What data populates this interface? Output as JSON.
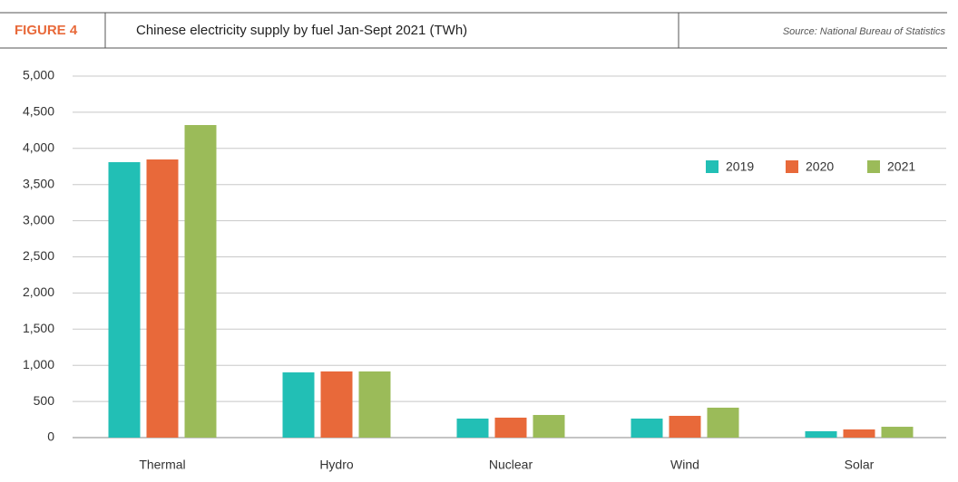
{
  "header": {
    "figure": "FIGURE 4",
    "source": "Source: National Bureau of Statistics"
  },
  "chart_data": {
    "type": "bar",
    "title": "Chinese electricity supply by fuel Jan-Sept 2021 (TWh)",
    "categories": [
      "Thermal",
      "Hydro",
      "Nuclear",
      "Wind",
      "Solar"
    ],
    "series": [
      {
        "name": "2019",
        "color": "#22bfb5",
        "values": [
          3810,
          902,
          263,
          263,
          88
        ]
      },
      {
        "name": "2020",
        "color": "#e8693a",
        "values": [
          3847,
          915,
          276,
          301,
          113
        ]
      },
      {
        "name": "2021",
        "color": "#9bbb59",
        "values": [
          4323,
          915,
          313,
          414,
          150
        ]
      }
    ],
    "ylim": [
      0,
      5000
    ],
    "yticks": [
      0,
      500,
      {
        "value": 1000,
        "label": "1,000"
      },
      {
        "value": 1500,
        "label": "1,500"
      },
      {
        "value": 2000,
        "label": "2,000"
      },
      {
        "value": 2500,
        "label": "2,500"
      },
      {
        "value": 3000,
        "label": "3,000"
      },
      {
        "value": 3500,
        "label": "3,500"
      },
      {
        "value": 4000,
        "label": "4,000"
      },
      {
        "value": 4500,
        "label": "4,500"
      },
      {
        "value": 5000,
        "label": "5,000"
      }
    ],
    "grid": true,
    "legend": "upper right"
  }
}
